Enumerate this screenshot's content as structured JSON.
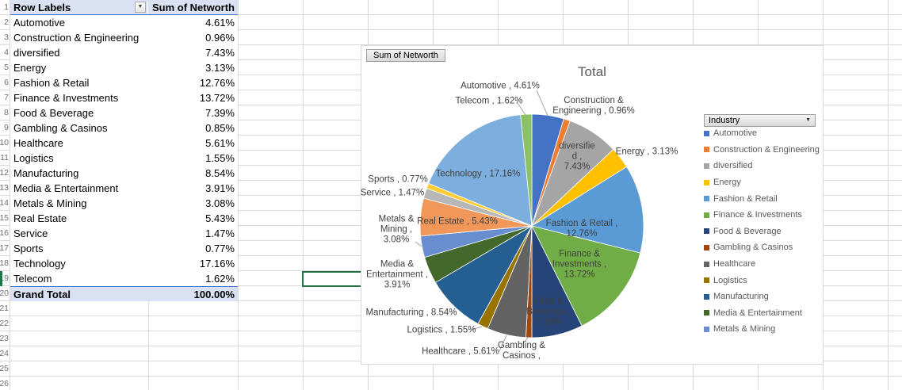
{
  "sheet": {
    "row_numbers": [
      1,
      2,
      3,
      4,
      5,
      6,
      7,
      8,
      9,
      10,
      11,
      12,
      13,
      14,
      15,
      16,
      17,
      18,
      19,
      20,
      21,
      22,
      23,
      24,
      25,
      26
    ],
    "selected_row": 19
  },
  "pivot_table": {
    "headers": {
      "row_labels": "Row Labels",
      "values": "Sum of Networth"
    },
    "rows": [
      {
        "label": "Automotive",
        "value": "4.61%"
      },
      {
        "label": "Construction & Engineering",
        "value": "0.96%"
      },
      {
        "label": "diversified",
        "value": "7.43%"
      },
      {
        "label": "Energy",
        "value": "3.13%"
      },
      {
        "label": "Fashion & Retail",
        "value": "12.76%"
      },
      {
        "label": "Finance & Investments",
        "value": "13.72%"
      },
      {
        "label": "Food & Beverage",
        "value": "7.39%"
      },
      {
        "label": "Gambling & Casinos",
        "value": "0.85%"
      },
      {
        "label": "Healthcare",
        "value": "5.61%"
      },
      {
        "label": "Logistics",
        "value": "1.55%"
      },
      {
        "label": "Manufacturing",
        "value": "8.54%"
      },
      {
        "label": "Media & Entertainment",
        "value": "3.91%"
      },
      {
        "label": "Metals & Mining",
        "value": "3.08%"
      },
      {
        "label": "Real Estate",
        "value": "5.43%"
      },
      {
        "label": "Service",
        "value": "1.47%"
      },
      {
        "label": "Sports",
        "value": "0.77%"
      },
      {
        "label": "Technology",
        "value": "17.16%"
      },
      {
        "label": "Telecom",
        "value": "1.62%"
      }
    ],
    "grand_total": {
      "label": "Grand Total",
      "value": "100.00%"
    }
  },
  "chart": {
    "value_field_button": "Sum of Networth",
    "title": "Total",
    "legend_field_button": "Industry",
    "legend_items": [
      {
        "label": "Automotive",
        "color": "#4472C4"
      },
      {
        "label": "Construction & Engineering",
        "color": "#ED7D31"
      },
      {
        "label": "diversified",
        "color": "#A5A5A5"
      },
      {
        "label": "Energy",
        "color": "#FFC000"
      },
      {
        "label": "Fashion & Retail",
        "color": "#5B9BD5"
      },
      {
        "label": "Finance & Investments",
        "color": "#70AD47"
      },
      {
        "label": "Food & Beverage",
        "color": "#264478"
      },
      {
        "label": "Gambling & Casinos",
        "color": "#9E480E"
      },
      {
        "label": "Healthcare",
        "color": "#636363"
      },
      {
        "label": "Logistics",
        "color": "#997300"
      },
      {
        "label": "Manufacturing",
        "color": "#255E91"
      },
      {
        "label": "Media & Entertainment",
        "color": "#43682B"
      },
      {
        "label": "Metals & Mining",
        "color": "#698ED0"
      }
    ],
    "data_labels": [
      {
        "lines": [
          "Automotive , 4.61%"
        ]
      },
      {
        "lines": [
          "Telecom , 1.62%"
        ]
      },
      {
        "lines": [
          "Construction &",
          "Engineering , 0.96%"
        ]
      },
      {
        "lines": [
          "diversifie",
          "d  ,",
          "7.43%"
        ]
      },
      {
        "lines": [
          "Energy , 3.13%"
        ]
      },
      {
        "lines": [
          "Fashion & Retail ,",
          "12.76%"
        ]
      },
      {
        "lines": [
          "Finance &",
          "Investments ,",
          "13.72%"
        ]
      },
      {
        "lines": [
          "Food &",
          "Beverage ,",
          "7.39%"
        ]
      },
      {
        "lines": [
          "Gambling &",
          "Casinos ,"
        ]
      },
      {
        "lines": [
          "Healthcare , 5.61%"
        ]
      },
      {
        "lines": [
          "Logistics , 1.55%"
        ]
      },
      {
        "lines": [
          "Manufacturing , 8.54%"
        ]
      },
      {
        "lines": [
          "Media &",
          "Entertainment ,",
          "3.91%"
        ]
      },
      {
        "lines": [
          "Metals &",
          "Mining ,",
          "3.08%"
        ]
      },
      {
        "lines": [
          "Real Estate , 5.43%"
        ]
      },
      {
        "lines": [
          "Service , 1.47%"
        ]
      },
      {
        "lines": [
          "Sports , 0.77%"
        ]
      },
      {
        "lines": [
          "Technology , 17.16%"
        ]
      }
    ]
  },
  "chart_data": {
    "type": "pie",
    "title": "Total",
    "categories": [
      "Automotive",
      "Construction & Engineering",
      "diversified",
      "Energy",
      "Fashion & Retail",
      "Finance & Investments",
      "Food & Beverage",
      "Gambling & Casinos",
      "Healthcare",
      "Logistics",
      "Manufacturing",
      "Media & Entertainment",
      "Metals & Mining",
      "Real Estate",
      "Service",
      "Sports",
      "Technology",
      "Telecom"
    ],
    "values": [
      4.61,
      0.96,
      7.43,
      3.13,
      12.76,
      13.72,
      7.39,
      0.85,
      5.61,
      1.55,
      8.54,
      3.91,
      3.08,
      5.43,
      1.47,
      0.77,
      17.16,
      1.62
    ],
    "colors": [
      "#4472C4",
      "#ED7D31",
      "#A5A5A5",
      "#FFC000",
      "#5B9BD5",
      "#70AD47",
      "#264478",
      "#9E480E",
      "#636363",
      "#997300",
      "#255E91",
      "#43682B",
      "#698ED0",
      "#F1975A",
      "#B7B7B7",
      "#FFCD33",
      "#7CAFDD",
      "#8CC168"
    ],
    "units": "percent",
    "legend_position": "right",
    "start_angle_deg": 0,
    "direction": "clockwise"
  }
}
